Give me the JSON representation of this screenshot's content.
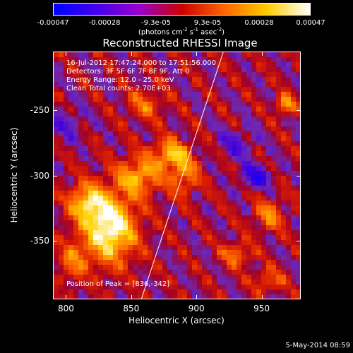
{
  "colorbar": {
    "ticks": [
      "-0.00047",
      "-0.00028",
      "-9.3e-05",
      "9.3e-05",
      "0.00028",
      "0.00047"
    ],
    "units_main": "(photons cm",
    "units_exp1": "-2",
    "units_mid": " s",
    "units_exp2": "-1",
    "units_mid2": " asec",
    "units_exp3": "-2",
    "units_end": ")",
    "colors": [
      "#0000ff",
      "#4400ee",
      "#9900cc",
      "#cc0000",
      "#ff6600",
      "#ffcc00",
      "#ffffff"
    ]
  },
  "info": {
    "time": "16-Jul-2012 17:47:24.000 to 17:51:56.000",
    "detectors": "Detectors: 3F 5F 6F 7F 8F 9F, Att 0",
    "energy": "Energy Range: 12.0 - 25.0 keV",
    "clean": "Clean    Total counts: 2.70E+03",
    "peak": "Position of Peak = [836,-342]"
  },
  "date_stamp": "5-May-2014 08:59",
  "chart_data": {
    "type": "heatmap",
    "title": "Reconstructed RHESSI Image",
    "xlabel": "Heliocentric X (arcsec)",
    "ylabel": "Heliocentric Y (arcsec)",
    "xlim": [
      790,
      980
    ],
    "ylim": [
      -395,
      -205
    ],
    "xticks": [
      "800",
      "850",
      "900",
      "950"
    ],
    "yticks": [
      "-250",
      "-300",
      "-350"
    ],
    "zlim": [
      -0.00047,
      0.00047
    ],
    "limb_line": [
      [
        857,
        -395
      ],
      [
        920,
        -205
      ]
    ],
    "peak": [
      836,
      -342
    ],
    "bright_sources": [
      {
        "x": 833,
        "y": -340,
        "amp": 0.00047,
        "sx": 14,
        "sy": 18
      },
      {
        "x": 815,
        "y": -320,
        "amp": 0.0003,
        "sx": 10,
        "sy": 10
      },
      {
        "x": 855,
        "y": -300,
        "amp": 0.0003,
        "sx": 12,
        "sy": 10
      },
      {
        "x": 880,
        "y": -283,
        "amp": 0.0003,
        "sx": 10,
        "sy": 8
      },
      {
        "x": 890,
        "y": -300,
        "amp": 0.00022,
        "sx": 8,
        "sy": 10
      },
      {
        "x": 860,
        "y": -245,
        "amp": 0.00018,
        "sx": 10,
        "sy": 8
      },
      {
        "x": 805,
        "y": -365,
        "amp": 0.0002,
        "sx": 8,
        "sy": 10
      },
      {
        "x": 968,
        "y": -245,
        "amp": 0.0003,
        "sx": 5,
        "sy": 5
      },
      {
        "x": 955,
        "y": -330,
        "amp": 0.00022,
        "sx": 8,
        "sy": 8
      },
      {
        "x": 930,
        "y": -360,
        "amp": 0.00022,
        "sx": 8,
        "sy": 6
      },
      {
        "x": 955,
        "y": -380,
        "amp": 0.00018,
        "sx": 8,
        "sy": 6
      }
    ],
    "dark_sources": [
      {
        "x": 945,
        "y": -300,
        "amp": -0.00028,
        "sx": 8,
        "sy": 6
      },
      {
        "x": 930,
        "y": -275,
        "amp": -0.00015,
        "sx": 10,
        "sy": 8
      },
      {
        "x": 800,
        "y": -260,
        "amp": -0.00012,
        "sx": 10,
        "sy": 10
      }
    ]
  }
}
